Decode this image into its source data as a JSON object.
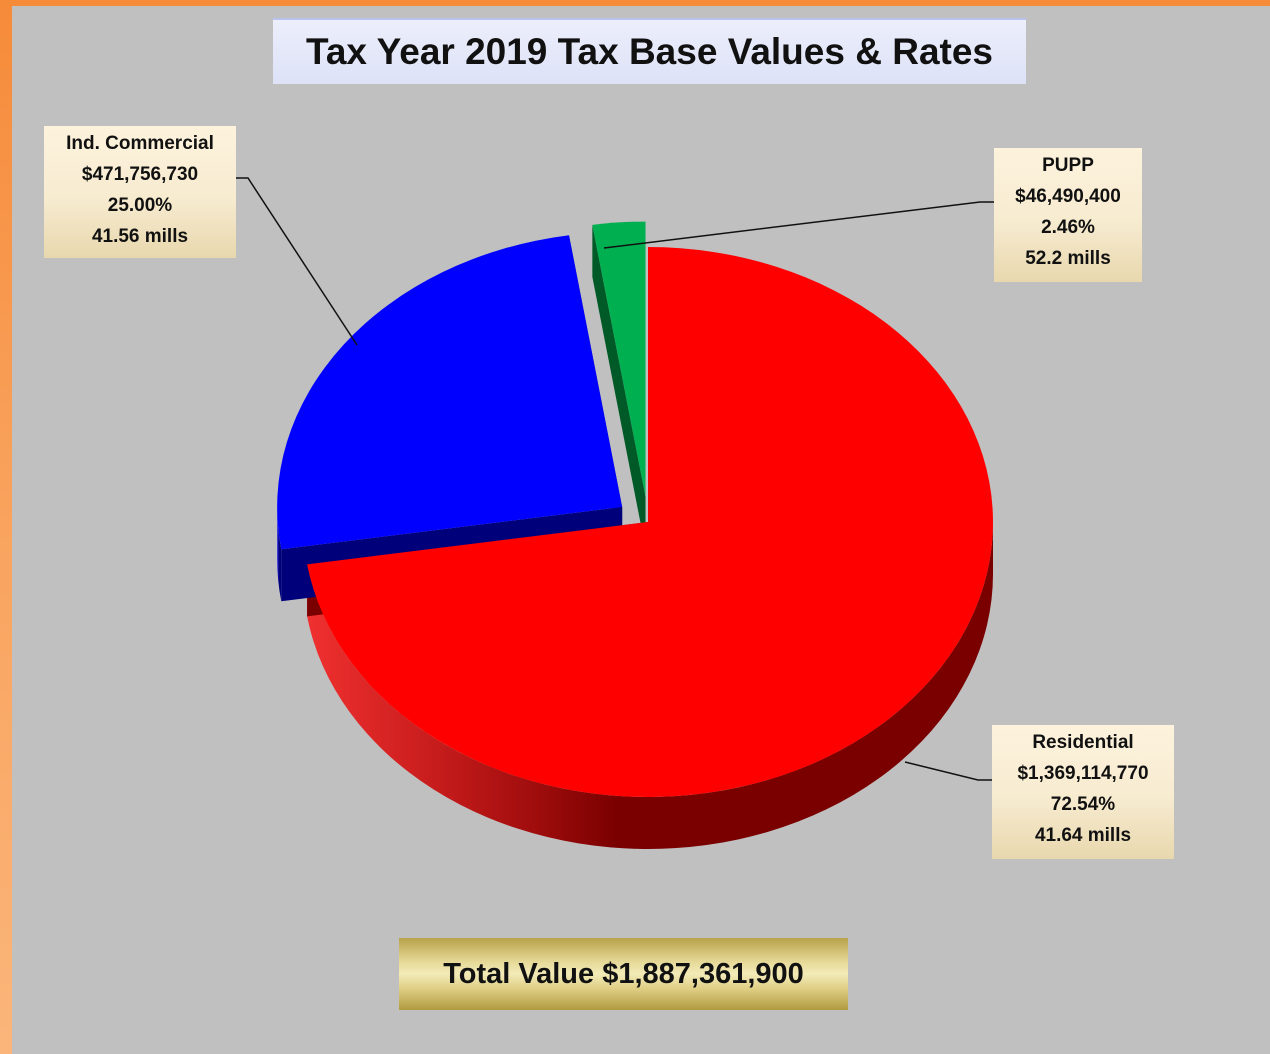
{
  "chart_data": {
    "type": "pie",
    "title": "Tax Year 2019 Tax Base Values & Rates",
    "slices": [
      {
        "name": "Residential",
        "value": 1369114770,
        "value_label": "$1,369,114,770",
        "percent": 72.54,
        "percent_label": "72.54%",
        "mills_label": "41.64 mills",
        "color": "#ff0000",
        "dark": "#7a0000",
        "exploded": false
      },
      {
        "name": "Ind. Commercial",
        "value": 471756730,
        "value_label": "$471,756,730",
        "percent": 25.0,
        "percent_label": "25.00%",
        "mills_label": "41.56 mills",
        "color": "#0000ff",
        "dark": "#00007a",
        "exploded": true
      },
      {
        "name": "PUPP",
        "value": 46490400,
        "value_label": "$46,490,400",
        "percent": 2.46,
        "percent_label": "2.46%",
        "mills_label": "52.2 mills",
        "color": "#00b050",
        "dark": "#005a28",
        "exploded": true
      }
    ],
    "total_label": "Total Value $1,887,361,900",
    "total": 1887361900
  }
}
